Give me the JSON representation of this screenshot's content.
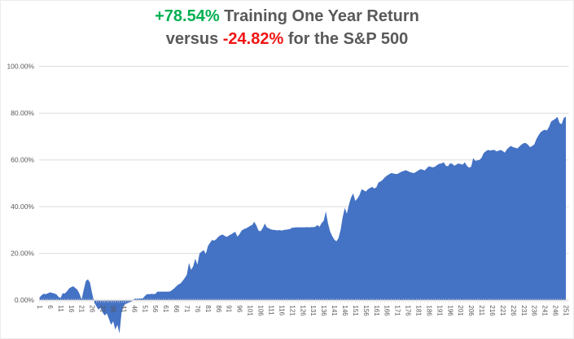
{
  "title": {
    "line1_highlight": "+78.54%",
    "line1_rest": " Training One Year Return",
    "line2_prefix": "versus ",
    "line2_highlight": "-24.82%",
    "line2_rest": " for the S&P 500",
    "highlight_green": "#00B050",
    "highlight_red": "#F01414",
    "text_color": "#595959"
  },
  "chart_data": {
    "type": "area",
    "title": "+78.54% Training One Year Return versus -24.82% for the S&P 500",
    "xlabel": "",
    "ylabel": "",
    "x_start": 1,
    "x_end": 251,
    "x_tick_step": 5,
    "x_tick_labels": [
      "1",
      "6",
      "11",
      "16",
      "21",
      "26",
      "31",
      "36",
      "41",
      "46",
      "51",
      "56",
      "61",
      "66",
      "71",
      "76",
      "81",
      "86",
      "91",
      "96",
      "101",
      "106",
      "111",
      "116",
      "121",
      "126",
      "131",
      "136",
      "141",
      "146",
      "151",
      "156",
      "161",
      "166",
      "171",
      "176",
      "181",
      "186",
      "191",
      "196",
      "201",
      "206",
      "211",
      "216",
      "221",
      "226",
      "231",
      "236",
      "241",
      "246",
      "251"
    ],
    "y_ticks": [
      0,
      20,
      40,
      60,
      80,
      100
    ],
    "y_tick_labels": [
      "0.00%",
      "20.00%",
      "40.00%",
      "60.00%",
      "80.00%",
      "100.00%"
    ],
    "ylim": [
      -16,
      105
    ],
    "grid": true,
    "legend_position": "none",
    "area_color": "#4472C4",
    "gridline_color": "#DCDCDC",
    "axis_line_color": "#D9D9D9",
    "axis_label_color": "#595959",
    "final_return_pct": 78.54,
    "sp500_return_pct": -24.82,
    "series": [
      {
        "name": "Training One Year Return",
        "values": [
          1.2,
          2.2,
          2.8,
          2.6,
          3.0,
          3.4,
          3.2,
          2.9,
          2.6,
          1.5,
          1.0,
          3.0,
          2.9,
          3.8,
          5.0,
          5.6,
          6.0,
          5.3,
          4.5,
          2.8,
          0.3,
          4.5,
          8.2,
          9.0,
          7.5,
          3.0,
          -1.0,
          -2.5,
          -4.0,
          -3.2,
          -5.2,
          -6.5,
          -5.6,
          -8.0,
          -10.5,
          -9.0,
          -12.5,
          -10.5,
          -14.2,
          -5.0,
          -2.3,
          -1.5,
          -1.2,
          -0.8,
          -0.3,
          0.6,
          0.7,
          0.7,
          0.8,
          0.8,
          1.8,
          2.6,
          2.6,
          2.7,
          2.7,
          2.7,
          3.7,
          3.7,
          3.7,
          3.7,
          3.7,
          3.7,
          3.8,
          4.4,
          5.1,
          6.0,
          6.8,
          7.2,
          8.3,
          9.5,
          11.0,
          16.0,
          13.0,
          14.5,
          17.8,
          15.2,
          20.0,
          20.8,
          21.4,
          19.8,
          23.2,
          24.6,
          25.8,
          25.5,
          26.2,
          27.2,
          27.8,
          28.1,
          27.5,
          27.1,
          27.7,
          28.2,
          28.8,
          29.3,
          27.2,
          28.3,
          29.8,
          30.4,
          30.7,
          31.2,
          31.8,
          32.2,
          33.6,
          32.0,
          29.8,
          29.5,
          30.8,
          32.8,
          31.2,
          30.7,
          30.3,
          30.1,
          30.0,
          29.9,
          30.0,
          29.8,
          30.0,
          30.2,
          30.3,
          30.5,
          31.0,
          31.1,
          31.2,
          31.2,
          31.2,
          31.2,
          31.2,
          31.3,
          31.2,
          31.3,
          31.3,
          31.4,
          32.2,
          31.4,
          33.0,
          34.0,
          38.0,
          33.0,
          29.5,
          27.5,
          26.0,
          25.2,
          26.5,
          30.0,
          35.5,
          39.5,
          37.0,
          41.0,
          44.0,
          45.7,
          42.5,
          43.5,
          45.0,
          47.5,
          47.0,
          46.5,
          47.5,
          48.0,
          48.5,
          47.8,
          48.3,
          50.4,
          50.8,
          51.5,
          52.5,
          53.3,
          53.8,
          54.4,
          54.2,
          54.0,
          54.0,
          54.5,
          55.0,
          55.3,
          55.6,
          55.2,
          54.8,
          54.5,
          54.4,
          55.0,
          55.5,
          56.1,
          55.8,
          55.5,
          56.5,
          57.3,
          57.0,
          56.8,
          57.2,
          57.9,
          58.4,
          58.5,
          59.0,
          57.5,
          57.3,
          58.5,
          58.4,
          57.5,
          58.0,
          58.5,
          58.2,
          58.0,
          59.0,
          57.5,
          56.7,
          57.1,
          60.8,
          59.6,
          59.8,
          60.0,
          61.0,
          63.0,
          63.7,
          64.3,
          64.0,
          64.2,
          64.3,
          63.7,
          63.9,
          64.3,
          63.8,
          63.1,
          64.5,
          65.4,
          66.0,
          65.4,
          65.2,
          64.9,
          65.8,
          66.6,
          67.2,
          67.2,
          66.5,
          65.4,
          66.0,
          66.6,
          68.9,
          70.5,
          71.8,
          72.5,
          72.9,
          72.6,
          74.1,
          76.4,
          77.0,
          77.6,
          78.4,
          75.8,
          75.3,
          77.9,
          78.54
        ]
      }
    ]
  }
}
